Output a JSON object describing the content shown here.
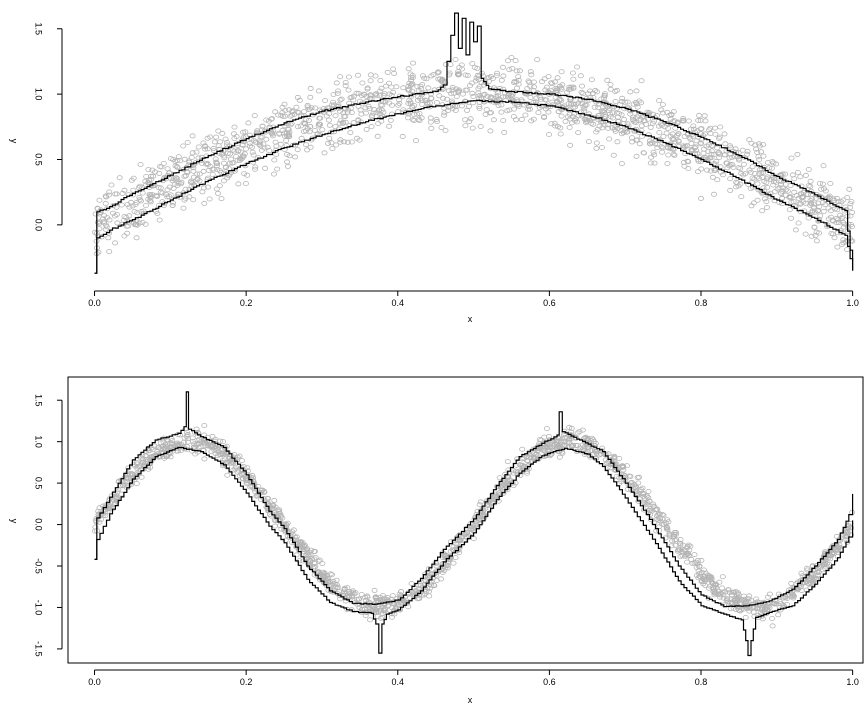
{
  "chart_data": [
    {
      "type": "scatter",
      "description_key": "top-panel",
      "xlabel": "x",
      "ylabel": "y",
      "xlim": [
        -0.035,
        1.015
      ],
      "ylim": [
        -0.46,
        1.72
      ],
      "x_ticks": [
        0.0,
        0.2,
        0.4,
        0.6,
        0.8,
        1.0
      ],
      "x_tick_labels": [
        "0.0",
        "0.2",
        "0.4",
        "0.6",
        "0.8",
        "1.0"
      ],
      "y_ticks": [
        0.0,
        0.5,
        1.0,
        1.5
      ],
      "y_tick_labels": [
        "0.0",
        "0.5",
        "1.0",
        "1.5"
      ],
      "frame": "left-bottom-axes",
      "point_color": "#b4b4b4",
      "line_color": "#000000",
      "curve": "sin(pi*x)",
      "n_points": 1700,
      "noise_sd": 0.12,
      "band": {
        "upper": [
          [
            0.0,
            -0.37
          ],
          [
            0.003,
            0.1
          ],
          [
            0.02,
            0.14
          ],
          [
            0.05,
            0.24
          ],
          [
            0.1,
            0.38
          ],
          [
            0.15,
            0.53
          ],
          [
            0.2,
            0.66
          ],
          [
            0.25,
            0.78
          ],
          [
            0.3,
            0.87
          ],
          [
            0.35,
            0.93
          ],
          [
            0.4,
            0.98
          ],
          [
            0.45,
            1.02
          ],
          [
            0.46,
            1.07
          ],
          [
            0.465,
            1.25
          ],
          [
            0.47,
            1.45
          ],
          [
            0.475,
            1.62
          ],
          [
            0.48,
            1.35
          ],
          [
            0.485,
            1.58
          ],
          [
            0.49,
            1.3
          ],
          [
            0.495,
            1.55
          ],
          [
            0.5,
            1.4
          ],
          [
            0.505,
            1.52
          ],
          [
            0.51,
            1.12
          ],
          [
            0.52,
            1.04
          ],
          [
            0.55,
            1.02
          ],
          [
            0.6,
            1.0
          ],
          [
            0.65,
            0.96
          ],
          [
            0.7,
            0.89
          ],
          [
            0.75,
            0.79
          ],
          [
            0.8,
            0.67
          ],
          [
            0.85,
            0.53
          ],
          [
            0.9,
            0.37
          ],
          [
            0.95,
            0.23
          ],
          [
            0.99,
            0.11
          ],
          [
            1.0,
            -0.35
          ]
        ],
        "lower": [
          [
            0.0,
            -0.37
          ],
          [
            0.003,
            -0.1
          ],
          [
            0.02,
            -0.04
          ],
          [
            0.05,
            0.04
          ],
          [
            0.1,
            0.19
          ],
          [
            0.15,
            0.34
          ],
          [
            0.2,
            0.47
          ],
          [
            0.25,
            0.59
          ],
          [
            0.3,
            0.69
          ],
          [
            0.35,
            0.78
          ],
          [
            0.4,
            0.85
          ],
          [
            0.45,
            0.91
          ],
          [
            0.5,
            0.95
          ],
          [
            0.55,
            0.94
          ],
          [
            0.6,
            0.91
          ],
          [
            0.65,
            0.84
          ],
          [
            0.7,
            0.75
          ],
          [
            0.75,
            0.63
          ],
          [
            0.8,
            0.5
          ],
          [
            0.85,
            0.35
          ],
          [
            0.9,
            0.19
          ],
          [
            0.95,
            0.05
          ],
          [
            0.99,
            -0.08
          ],
          [
            1.0,
            -0.35
          ]
        ]
      }
    },
    {
      "type": "scatter",
      "description_key": "bottom-panel",
      "xlabel": "x",
      "ylabel": "y",
      "xlim": [
        -0.035,
        1.015
      ],
      "ylim": [
        -1.67,
        1.78
      ],
      "x_ticks": [
        0.0,
        0.2,
        0.4,
        0.6,
        0.8,
        1.0
      ],
      "x_tick_labels": [
        "0.0",
        "0.2",
        "0.4",
        "0.6",
        "0.8",
        "1.0"
      ],
      "y_ticks": [
        -1.5,
        -1.0,
        -0.5,
        0.0,
        0.5,
        1.0,
        1.5
      ],
      "y_tick_labels": [
        "-1.5",
        "-1.0",
        "-0.5",
        "0.0",
        "0.5",
        "1.0",
        "1.5"
      ],
      "frame": "box",
      "point_color": "#b4b4b4",
      "line_color": "#000000",
      "curve": "sin(4*pi*x)",
      "n_points": 1700,
      "noise_sd": 0.07,
      "band": {
        "upper": [
          [
            0.0,
            -0.42
          ],
          [
            0.003,
            0.08
          ],
          [
            0.02,
            0.33
          ],
          [
            0.05,
            0.78
          ],
          [
            0.08,
            1.02
          ],
          [
            0.11,
            1.1
          ],
          [
            0.118,
            1.18
          ],
          [
            0.121,
            1.6
          ],
          [
            0.124,
            1.15
          ],
          [
            0.14,
            1.06
          ],
          [
            0.17,
            0.93
          ],
          [
            0.2,
            0.6
          ],
          [
            0.23,
            0.16
          ],
          [
            0.25,
            -0.05
          ],
          [
            0.28,
            -0.5
          ],
          [
            0.31,
            -0.8
          ],
          [
            0.34,
            -0.95
          ],
          [
            0.37,
            -0.96
          ],
          [
            0.4,
            -0.91
          ],
          [
            0.43,
            -0.65
          ],
          [
            0.46,
            -0.3
          ],
          [
            0.5,
            0.07
          ],
          [
            0.53,
            0.47
          ],
          [
            0.56,
            0.82
          ],
          [
            0.59,
            0.98
          ],
          [
            0.61,
            1.08
          ],
          [
            0.613,
            1.36
          ],
          [
            0.617,
            1.12
          ],
          [
            0.64,
            1.02
          ],
          [
            0.67,
            0.88
          ],
          [
            0.7,
            0.5
          ],
          [
            0.74,
            -0.05
          ],
          [
            0.77,
            -0.5
          ],
          [
            0.8,
            -0.85
          ],
          [
            0.83,
            -0.99
          ],
          [
            0.86,
            -0.98
          ],
          [
            0.89,
            -0.92
          ],
          [
            0.92,
            -0.78
          ],
          [
            0.95,
            -0.5
          ],
          [
            0.98,
            -0.18
          ],
          [
            0.995,
            0.12
          ],
          [
            1.0,
            0.37
          ]
        ],
        "lower": [
          [
            0.0,
            -0.42
          ],
          [
            0.003,
            -0.18
          ],
          [
            0.02,
            0.13
          ],
          [
            0.05,
            0.55
          ],
          [
            0.08,
            0.82
          ],
          [
            0.11,
            0.93
          ],
          [
            0.14,
            0.88
          ],
          [
            0.17,
            0.72
          ],
          [
            0.2,
            0.38
          ],
          [
            0.23,
            -0.02
          ],
          [
            0.25,
            -0.22
          ],
          [
            0.28,
            -0.66
          ],
          [
            0.31,
            -0.94
          ],
          [
            0.34,
            -1.05
          ],
          [
            0.365,
            -1.07
          ],
          [
            0.371,
            -1.2
          ],
          [
            0.375,
            -1.55
          ],
          [
            0.379,
            -1.2
          ],
          [
            0.385,
            -1.08
          ],
          [
            0.4,
            -1.03
          ],
          [
            0.43,
            -0.8
          ],
          [
            0.46,
            -0.45
          ],
          [
            0.5,
            -0.1
          ],
          [
            0.53,
            0.3
          ],
          [
            0.56,
            0.62
          ],
          [
            0.59,
            0.83
          ],
          [
            0.62,
            0.92
          ],
          [
            0.65,
            0.85
          ],
          [
            0.67,
            0.7
          ],
          [
            0.7,
            0.32
          ],
          [
            0.74,
            -0.23
          ],
          [
            0.77,
            -0.68
          ],
          [
            0.8,
            -0.98
          ],
          [
            0.83,
            -1.08
          ],
          [
            0.853,
            -1.15
          ],
          [
            0.859,
            -1.4
          ],
          [
            0.862,
            -1.58
          ],
          [
            0.866,
            -1.4
          ],
          [
            0.872,
            -1.12
          ],
          [
            0.89,
            -1.06
          ],
          [
            0.92,
            -0.98
          ],
          [
            0.95,
            -0.72
          ],
          [
            0.98,
            -0.4
          ],
          [
            0.995,
            -0.15
          ],
          [
            1.0,
            0.05
          ]
        ]
      }
    }
  ]
}
